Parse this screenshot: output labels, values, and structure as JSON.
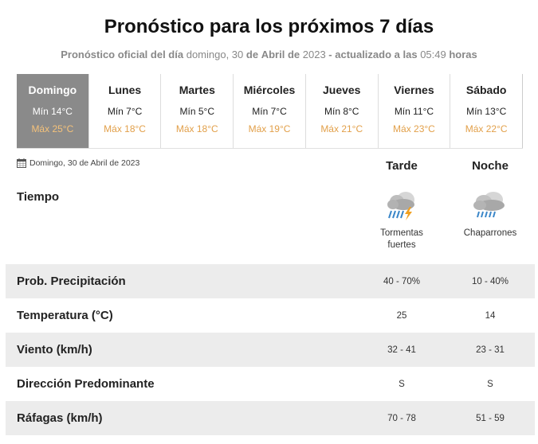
{
  "header": {
    "title": "Pronóstico para los próximos 7 días",
    "subtitle_prefix": "Pronóstico oficial del día",
    "subtitle_day": "domingo, 30",
    "subtitle_de1": "de",
    "subtitle_month": "Abril",
    "subtitle_de2": "de",
    "subtitle_year": "2023",
    "subtitle_updated": "- actualizado a las",
    "subtitle_time": "05:49",
    "subtitle_hours": "horas"
  },
  "days": [
    {
      "name": "Domingo",
      "min": "Mín 14°C",
      "max": "Máx 25°C",
      "active": true
    },
    {
      "name": "Lunes",
      "min": "Mín 7°C",
      "max": "Máx 18°C",
      "active": false
    },
    {
      "name": "Martes",
      "min": "Mín 5°C",
      "max": "Máx 18°C",
      "active": false
    },
    {
      "name": "Miércoles",
      "min": "Mín 7°C",
      "max": "Máx 19°C",
      "active": false
    },
    {
      "name": "Jueves",
      "min": "Mín 8°C",
      "max": "Máx 21°C",
      "active": false
    },
    {
      "name": "Viernes",
      "min": "Mín 11°C",
      "max": "Máx 23°C",
      "active": false
    },
    {
      "name": "Sábado",
      "min": "Mín 13°C",
      "max": "Máx 22°C",
      "active": false
    }
  ],
  "detail": {
    "date": "Domingo, 30 de Abril de 2023",
    "date_icon": "calendar-icon",
    "columns": {
      "tarde": "Tarde",
      "noche": "Noche"
    },
    "tiempo_label": "Tiempo",
    "weather": {
      "tarde": {
        "icon": "storm-cloud-icon",
        "desc_line1": "Tormentas",
        "desc_line2": "fuertes"
      },
      "noche": {
        "icon": "showers-cloud-icon",
        "desc_line1": "Chaparrones",
        "desc_line2": ""
      }
    },
    "rows": [
      {
        "label": "Prob. Precipitación",
        "tarde": "40 - 70%",
        "noche": "10 - 40%"
      },
      {
        "label": "Temperatura (°C)",
        "tarde": "25",
        "noche": "14"
      },
      {
        "label": "Viento (km/h)",
        "tarde": "32 - 41",
        "noche": "23 - 31"
      },
      {
        "label": "Dirección Predominante",
        "tarde": "S",
        "noche": "S"
      },
      {
        "label": "Ráfagas (km/h)",
        "tarde": "70 - 78",
        "noche": "51 - 59"
      }
    ]
  },
  "colors": {
    "active_day_bg": "#8a8a8a",
    "max_temp": "#e2a04a",
    "row_shade": "#ececec"
  }
}
